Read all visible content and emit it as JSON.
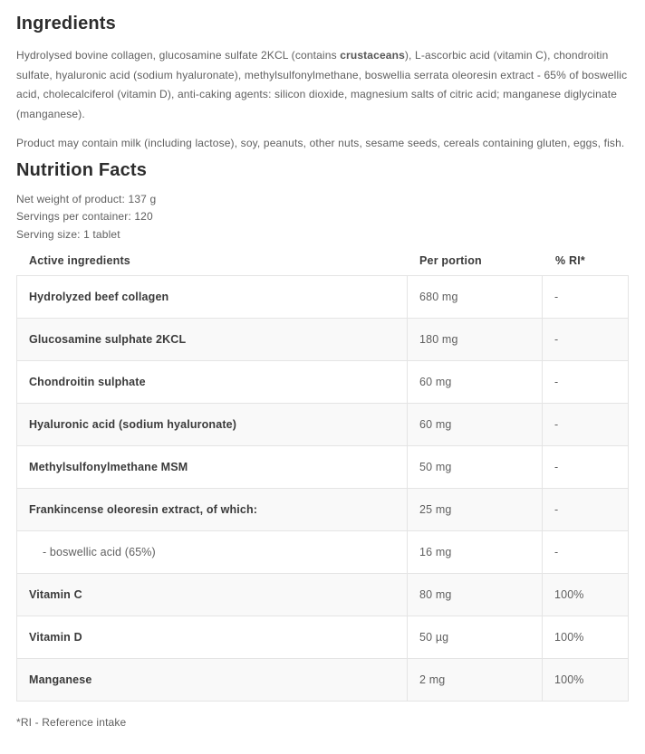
{
  "ingredients": {
    "title": "Ingredients",
    "text_before_allergen": "Hydrolysed bovine collagen, glucosamine sulfate 2KCL (contains ",
    "allergen_bold": "crustaceans",
    "text_after_allergen": "), L-ascorbic acid (vitamin C), chondroitin sulfate, hyaluronic acid (sodium hyaluronate), methylsulfonylmethane, boswellia serrata oleoresin extract - 65% of boswellic acid, cholecalciferol (vitamin D), anti-caking agents: silicon dioxide, magnesium salts of citric acid; manganese diglycinate (manganese).",
    "may_contain": "Product may contain milk (including lactose), soy, peanuts, other nuts, sesame seeds, cereals containing gluten, eggs, fish."
  },
  "nutrition": {
    "title": "Nutrition Facts",
    "net_weight": "Net weight of product: 137 g",
    "servings_per_container": "Servings per container: 120",
    "serving_size": "Serving size: 1 tablet",
    "table": {
      "headers": [
        "Active ingredients",
        "Per portion",
        "% RI*"
      ],
      "rows": [
        {
          "name": "Hydrolyzed beef collagen",
          "per_portion": "680 mg",
          "ri": "-",
          "sub": false
        },
        {
          "name": "Glucosamine sulphate 2KCL",
          "per_portion": "180 mg",
          "ri": "-",
          "sub": false
        },
        {
          "name": "Chondroitin sulphate",
          "per_portion": "60 mg",
          "ri": "-",
          "sub": false
        },
        {
          "name": "Hyaluronic acid (sodium hyaluronate)",
          "per_portion": "60 mg",
          "ri": "-",
          "sub": false
        },
        {
          "name": "Methylsulfonylmethane MSM",
          "per_portion": "50 mg",
          "ri": "-",
          "sub": false
        },
        {
          "name": "Frankincense oleoresin extract, of which:",
          "per_portion": "25 mg",
          "ri": "-",
          "sub": false
        },
        {
          "name": "- boswellic acid (65%)",
          "per_portion": "16 mg",
          "ri": "-",
          "sub": true
        },
        {
          "name": "Vitamin C",
          "per_portion": "80 mg",
          "ri": "100%",
          "sub": false
        },
        {
          "name": "Vitamin D",
          "per_portion": "50 µg",
          "ri": "100%",
          "sub": false
        },
        {
          "name": "Manganese",
          "per_portion": "2 mg",
          "ri": "100%",
          "sub": false
        }
      ]
    },
    "footnote": "*RI - Reference intake"
  },
  "colors": {
    "heading_text": "#2d2d2d",
    "body_text": "#5f5f5f",
    "table_name_text": "#3a3a3a",
    "table_border": "#e4e4e4",
    "row_alt_background": "#f9f9f9",
    "page_background": "#ffffff"
  }
}
